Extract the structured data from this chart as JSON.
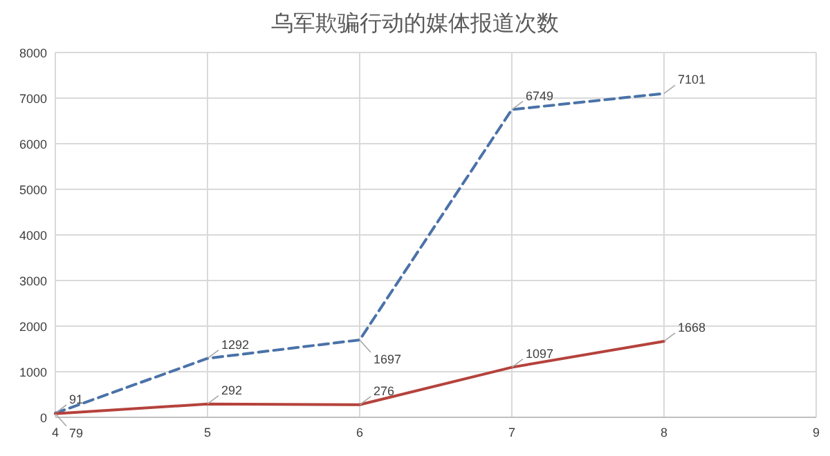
{
  "chart_data": {
    "type": "line",
    "title": "乌军欺骗行动的媒体报道次数",
    "x": [
      4,
      5,
      6,
      7,
      8
    ],
    "series": [
      {
        "color": "#4a72a8",
        "line_style": "dashed",
        "values": [
          91,
          1292,
          1697,
          6749,
          7101
        ]
      },
      {
        "color": "#b5423c",
        "line_style": "solid",
        "values": [
          79,
          292,
          276,
          1097,
          1668
        ]
      }
    ],
    "xlim": [
      4,
      9
    ],
    "xticks": [
      4,
      5,
      6,
      7,
      8,
      9
    ],
    "ylim": [
      0,
      8000
    ],
    "yticks": [
      0,
      1000,
      2000,
      3000,
      4000,
      5000,
      6000,
      7000,
      8000
    ],
    "grid": true,
    "data_labels": true,
    "marker": "none"
  }
}
